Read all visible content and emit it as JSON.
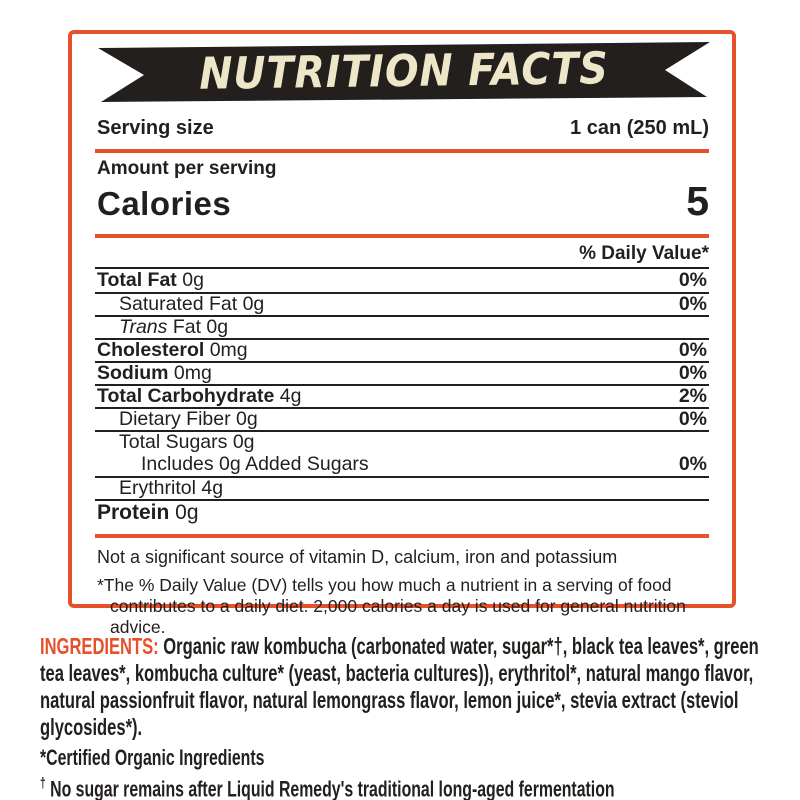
{
  "colors": {
    "accent_orange": "#E6502B",
    "ink_black": "#221F1D",
    "banner_cream": "#EDE6C8"
  },
  "label": {
    "title": "NUTRITION FACTS",
    "serving_size_label": "Serving size",
    "serving_size_value": "1 can (250 mL)",
    "amount_per_serving": "Amount per serving",
    "calories_label": "Calories",
    "calories_value": "5",
    "daily_value_header": "% Daily Value*",
    "rows": [
      {
        "name": "Total Fat",
        "amount": "0g",
        "dv": "0%",
        "bold": true,
        "indent": 0,
        "separator_above": true
      },
      {
        "name": "Saturated Fat",
        "amount": "0g",
        "dv": "0%",
        "bold": false,
        "indent": 1,
        "separator_above": true
      },
      {
        "italic_prefix": "Trans",
        "name": "Fat",
        "amount": "0g",
        "dv": "",
        "bold": false,
        "indent": 1,
        "separator_above": true
      },
      {
        "name": "Cholesterol",
        "amount": "0mg",
        "dv": "0%",
        "bold": true,
        "indent": 0,
        "separator_above": true
      },
      {
        "name": "Sodium",
        "amount": "0mg",
        "dv": "0%",
        "bold": true,
        "indent": 0,
        "separator_above": true
      },
      {
        "name": "Total Carbohydrate",
        "amount": "4g",
        "dv": "2%",
        "bold": true,
        "indent": 0,
        "separator_above": true
      },
      {
        "name": "Dietary Fiber",
        "amount": "0g",
        "dv": "0%",
        "bold": false,
        "indent": 1,
        "separator_above": true
      },
      {
        "name": "Total Sugars",
        "amount": "0g",
        "dv": "",
        "bold": false,
        "indent": 1,
        "separator_above": true
      },
      {
        "name": "Includes 0g Added Sugars",
        "amount": "",
        "dv": "0%",
        "bold": false,
        "indent": 2,
        "separator_above": false
      },
      {
        "name": "Erythritol",
        "amount": "4g",
        "dv": "",
        "bold": false,
        "indent": 1,
        "separator_above": true
      },
      {
        "name": "Protein",
        "amount": "0g",
        "dv": "",
        "bold": true,
        "indent": 0,
        "separator_above": true,
        "large": true
      }
    ],
    "not_significant": "Not a significant source of vitamin D, calcium, iron and potassium",
    "dv_footnote": "*The % Daily Value (DV) tells you how much a nutrient in a serving of food contributes to a daily diet. 2,000 calories a day is used for general nutrition advice."
  },
  "ingredients": {
    "label": "INGREDIENTS:",
    "text": " Organic raw kombucha (carbonated water, sugar*†, black tea leaves*, green tea leaves*, kombucha culture* (yeast, bacteria cultures)), erythritol*, natural mango flavor, natural passionfruit flavor, natural lemongrass flavor, lemon juice*, stevia extract (steviol glycosides*)."
  },
  "footnotes": [
    {
      "marker": "*",
      "superscript": false,
      "text": "Certified Organic Ingredients"
    },
    {
      "marker": "†",
      "superscript": true,
      "text": " No sugar remains after Liquid Remedy's traditional long-aged fermentation"
    }
  ]
}
